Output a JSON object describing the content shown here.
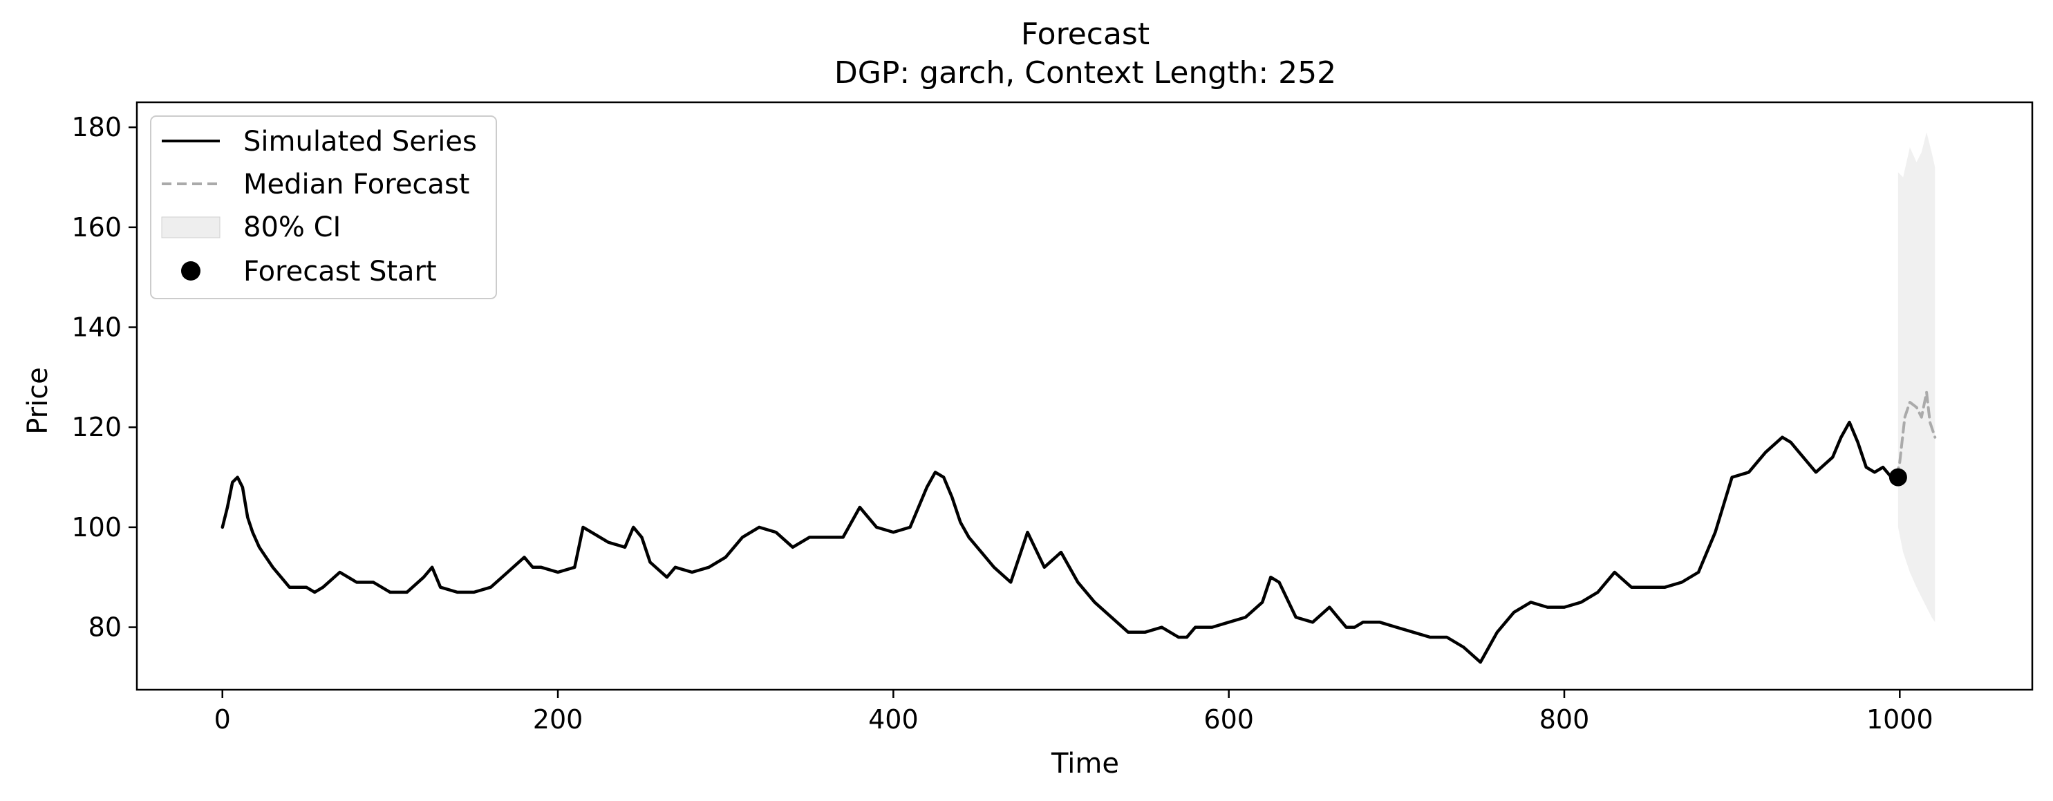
{
  "chart_data": {
    "type": "line",
    "title": "Forecast",
    "subtitle": "DGP: garch, Context Length: 252",
    "xlabel": "Time",
    "ylabel": "Price",
    "xlim": [
      -51,
      1079
    ],
    "ylim": [
      67.5,
      185
    ],
    "xticks": [
      0,
      200,
      400,
      600,
      800,
      1000
    ],
    "xtick_labels": [
      "0",
      "200",
      "400",
      "600",
      "800",
      "1000"
    ],
    "yticks": [
      80,
      100,
      120,
      140,
      160,
      180
    ],
    "ytick_labels": [
      "80",
      "100",
      "120",
      "140",
      "160",
      "180"
    ],
    "grid": false,
    "legend_position": "top-left",
    "legend": [
      "Simulated Series",
      "Median Forecast",
      "80% CI",
      "Forecast Start"
    ],
    "series": [
      {
        "name": "Simulated Series",
        "style": "solid",
        "color": "#000000",
        "x": [
          0,
          3,
          6,
          9,
          12,
          15,
          18,
          22,
          26,
          30,
          35,
          40,
          45,
          50,
          55,
          60,
          70,
          75,
          80,
          90,
          100,
          110,
          120,
          125,
          130,
          140,
          150,
          160,
          170,
          180,
          185,
          190,
          200,
          210,
          215,
          220,
          230,
          240,
          245,
          250,
          255,
          265,
          270,
          280,
          290,
          300,
          310,
          320,
          330,
          340,
          350,
          360,
          370,
          380,
          390,
          400,
          410,
          420,
          425,
          430,
          435,
          440,
          445,
          450,
          460,
          470,
          480,
          490,
          500,
          510,
          520,
          530,
          540,
          550,
          560,
          570,
          575,
          580,
          590,
          600,
          610,
          620,
          625,
          630,
          640,
          650,
          660,
          670,
          675,
          680,
          690,
          700,
          710,
          720,
          730,
          740,
          750,
          755,
          760,
          770,
          780,
          790,
          800,
          810,
          820,
          830,
          840,
          850,
          860,
          870,
          880,
          890,
          900,
          910,
          920,
          930,
          935,
          940,
          950,
          960,
          965,
          970,
          975,
          980,
          985,
          990,
          995,
          1000
        ],
        "values": [
          100,
          104,
          109,
          110,
          108,
          102,
          99,
          96,
          94,
          92,
          90,
          88,
          88,
          88,
          87,
          88,
          91,
          90,
          89,
          89,
          87,
          87,
          90,
          92,
          88,
          87,
          87,
          88,
          91,
          94,
          92,
          92,
          91,
          92,
          100,
          99,
          97,
          96,
          100,
          98,
          93,
          90,
          92,
          91,
          92,
          94,
          98,
          100,
          99,
          96,
          98,
          98,
          98,
          104,
          100,
          99,
          100,
          108,
          111,
          110,
          106,
          101,
          98,
          96,
          92,
          89,
          99,
          92,
          95,
          89,
          85,
          82,
          79,
          79,
          80,
          78,
          78,
          80,
          80,
          81,
          82,
          85,
          90,
          89,
          82,
          81,
          84,
          80,
          80,
          81,
          81,
          80,
          79,
          78,
          78,
          76,
          73,
          76,
          79,
          83,
          85,
          84,
          84,
          85,
          87,
          91,
          88,
          88,
          88,
          89,
          91,
          99,
          110,
          111,
          115,
          118,
          117,
          115,
          111,
          114,
          118,
          121,
          117,
          112,
          111,
          112,
          110,
          110
        ]
      },
      {
        "name": "Median Forecast",
        "style": "dashed",
        "color": "#aaaaaa",
        "x": [
          998,
          1000,
          1003,
          1006,
          1010,
          1013,
          1016,
          1018,
          1021
        ],
        "values": [
          110,
          113,
          122,
          125,
          124,
          122,
          127,
          121,
          118
        ]
      }
    ],
    "interval": {
      "name": "80% CI",
      "color": "#d9d9d9",
      "x": [
        999,
        1002,
        1006,
        1010,
        1013,
        1016,
        1019,
        1021
      ],
      "lower": [
        100,
        95,
        91,
        88,
        86,
        84,
        82,
        81
      ],
      "upper": [
        171,
        170,
        176,
        173,
        175,
        179,
        175,
        172
      ]
    },
    "points": [
      {
        "name": "Forecast Start",
        "x": 999,
        "y": 110,
        "color": "#000000"
      }
    ]
  }
}
